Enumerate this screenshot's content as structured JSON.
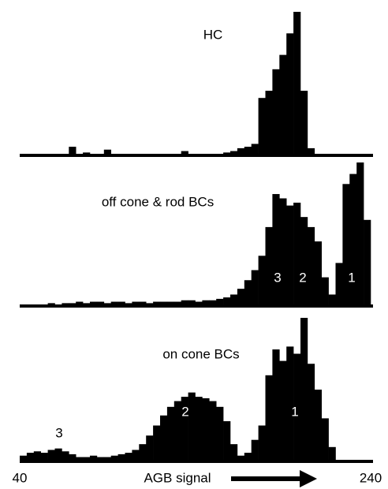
{
  "chart_data": [
    {
      "type": "histogram",
      "title": "HC",
      "color": "#000000",
      "xlim": [
        40,
        240
      ],
      "ylim": [
        0,
        100
      ],
      "bins": [
        40,
        44,
        48,
        52,
        56,
        60,
        64,
        68,
        72,
        76,
        80,
        84,
        88,
        92,
        96,
        100,
        104,
        108,
        112,
        116,
        120,
        124,
        128,
        132,
        136,
        140,
        144,
        148,
        152,
        156,
        160,
        164,
        168,
        172,
        176,
        180,
        184,
        188,
        192,
        196,
        200,
        204,
        208,
        212,
        216,
        220,
        224,
        228,
        232,
        236,
        240
      ],
      "values": [
        1,
        1,
        1,
        1,
        1,
        1,
        1,
        6,
        1,
        2,
        1,
        1,
        4,
        1,
        1,
        1,
        1,
        1,
        1,
        1,
        1,
        1,
        1,
        3,
        1,
        1,
        1,
        1,
        1,
        2,
        3,
        5,
        6,
        8,
        40,
        45,
        60,
        70,
        85,
        100,
        45,
        5,
        1,
        0,
        0,
        0,
        0,
        0,
        0,
        0
      ]
    },
    {
      "type": "histogram",
      "title": "off cone & rod BCs",
      "color": "#000000",
      "xlim": [
        40,
        240
      ],
      "ylim": [
        0,
        100
      ],
      "bins": [
        40,
        44,
        48,
        52,
        56,
        60,
        64,
        68,
        72,
        76,
        80,
        84,
        88,
        92,
        96,
        100,
        104,
        108,
        112,
        116,
        120,
        124,
        128,
        132,
        136,
        140,
        144,
        148,
        152,
        156,
        160,
        164,
        168,
        172,
        176,
        180,
        184,
        188,
        192,
        196,
        200,
        204,
        208,
        212,
        216,
        220,
        224,
        228,
        232,
        236,
        240
      ],
      "values": [
        1,
        1,
        1,
        1,
        2,
        1,
        2,
        2,
        3,
        2,
        3,
        3,
        2,
        3,
        3,
        2,
        3,
        3,
        2,
        3,
        3,
        3,
        3,
        4,
        4,
        3,
        4,
        4,
        5,
        6,
        8,
        12,
        18,
        25,
        35,
        55,
        78,
        75,
        70,
        72,
        62,
        55,
        45,
        20,
        8,
        30,
        85,
        92,
        100,
        60
      ],
      "annotations": [
        "3",
        "2",
        "1"
      ]
    },
    {
      "type": "histogram",
      "title": "on cone BCs",
      "color": "#000000",
      "xlim": [
        40,
        240
      ],
      "ylim": [
        0,
        100
      ],
      "bins": [
        40,
        44,
        48,
        52,
        56,
        60,
        64,
        68,
        72,
        76,
        80,
        84,
        88,
        92,
        96,
        100,
        104,
        108,
        112,
        116,
        120,
        124,
        128,
        132,
        136,
        140,
        144,
        148,
        152,
        156,
        160,
        164,
        168,
        172,
        176,
        180,
        184,
        188,
        192,
        196,
        200,
        204,
        208,
        212,
        216,
        220,
        224,
        228,
        232,
        236,
        240
      ],
      "values": [
        4,
        6,
        7,
        6,
        8,
        9,
        7,
        5,
        3,
        3,
        4,
        3,
        3,
        4,
        5,
        6,
        8,
        12,
        18,
        25,
        32,
        38,
        42,
        45,
        48,
        45,
        44,
        42,
        38,
        28,
        12,
        4,
        6,
        15,
        25,
        60,
        78,
        70,
        80,
        75,
        100,
        68,
        50,
        30,
        10,
        0,
        0,
        0,
        0,
        0
      ],
      "annotations": [
        "3",
        "2",
        "1"
      ],
      "xticks": [
        40,
        240
      ],
      "xlabel": "AGB signal"
    }
  ]
}
